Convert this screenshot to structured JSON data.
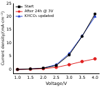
{
  "chart_data": {
    "type": "line",
    "x_label": "Voltage/V",
    "y_label": "Current density/(mA·cm⁻²)",
    "x": [
      1.0,
      1.5,
      2.0,
      2.5,
      3.0,
      3.5,
      4.0
    ],
    "series": [
      {
        "name": "Start",
        "color": "#000000",
        "marker": "square",
        "values": [
          0,
          0.2,
          0.5,
          1.5,
          5.5,
          12.5,
          21
        ]
      },
      {
        "name": "After 24h @ 3V",
        "color": "#e02020",
        "marker": "circle",
        "values": [
          0,
          0.1,
          0.3,
          0.8,
          1.8,
          3,
          4
        ]
      },
      {
        "name": "KHCO₃ updated",
        "color": "#1f3fd0",
        "marker": "triangle",
        "values": [
          0,
          0.2,
          0.5,
          1.8,
          6,
          12.7,
          20
        ]
      }
    ],
    "xlim": [
      0.85,
      4.15
    ],
    "xticks": [
      {
        "value": 1,
        "label": "1.0"
      },
      1.5,
      {
        "value": 2,
        "label": "2.0"
      },
      2.5,
      {
        "value": 3,
        "label": "3.0"
      },
      3.5,
      {
        "value": 4,
        "label": "4.0"
      }
    ],
    "ylim": [
      -1.5,
      25
    ],
    "yticks": [
      0,
      5,
      10,
      15,
      20,
      25
    ],
    "grid": false,
    "legend": "upper left"
  }
}
